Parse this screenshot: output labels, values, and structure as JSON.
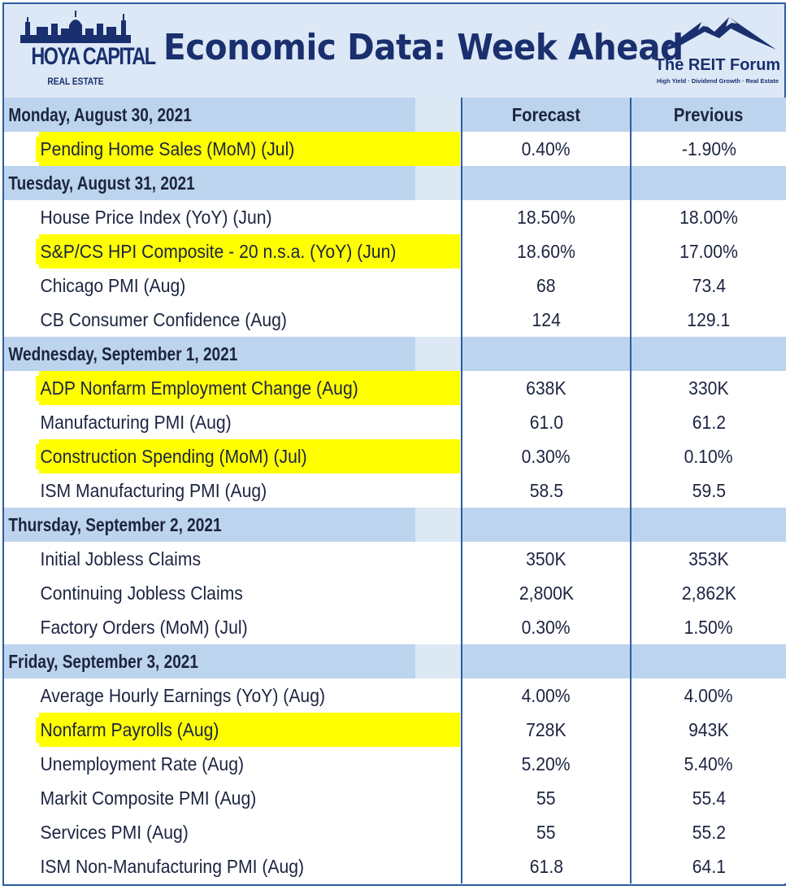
{
  "header": {
    "title": "Economic Data: Week Ahead",
    "left_logo": {
      "name": "HOYA CAPITAL",
      "sub": "REAL ESTATE"
    },
    "right_logo": {
      "name": "The REIT Forum",
      "tagline": "High Yield · Dividend Growth · Real Estate"
    }
  },
  "columns": {
    "forecast": "Forecast",
    "previous": "Previous"
  },
  "colors": {
    "navy": "#1a2f6e",
    "highlight": "#ffff00",
    "day_row": "#bdd4ee",
    "frame": "#2f5da0"
  },
  "days": [
    {
      "label": "Monday, August 30, 2021",
      "items": [
        {
          "name": "Pending Home Sales (MoM) (Jul)",
          "forecast": "0.40%",
          "previous": "-1.90%",
          "highlight": true
        }
      ]
    },
    {
      "label": "Tuesday, August 31, 2021",
      "items": [
        {
          "name": "House Price Index (YoY) (Jun)",
          "forecast": "18.50%",
          "previous": "18.00%",
          "highlight": false
        },
        {
          "name": "S&P/CS HPI Composite - 20 n.s.a. (YoY) (Jun)",
          "forecast": "18.60%",
          "previous": "17.00%",
          "highlight": true
        },
        {
          "name": "Chicago PMI (Aug)",
          "forecast": "68",
          "previous": "73.4",
          "highlight": false
        },
        {
          "name": "CB Consumer Confidence (Aug)",
          "forecast": "124",
          "previous": "129.1",
          "highlight": false
        }
      ]
    },
    {
      "label": "Wednesday, September 1, 2021",
      "items": [
        {
          "name": "ADP Nonfarm Employment Change (Aug)",
          "forecast": "638K",
          "previous": "330K",
          "highlight": true
        },
        {
          "name": "Manufacturing PMI (Aug)",
          "forecast": "61.0",
          "previous": "61.2",
          "highlight": false
        },
        {
          "name": "Construction Spending (MoM) (Jul)",
          "forecast": "0.30%",
          "previous": "0.10%",
          "highlight": true
        },
        {
          "name": "ISM Manufacturing PMI (Aug)",
          "forecast": "58.5",
          "previous": "59.5",
          "highlight": false
        }
      ]
    },
    {
      "label": "Thursday, September 2, 2021",
      "items": [
        {
          "name": "Initial Jobless Claims",
          "forecast": "350K",
          "previous": "353K",
          "highlight": false
        },
        {
          "name": "Continuing Jobless Claims",
          "forecast": "2,800K",
          "previous": "2,862K",
          "highlight": false
        },
        {
          "name": "Factory Orders (MoM) (Jul)",
          "forecast": "0.30%",
          "previous": "1.50%",
          "highlight": false
        }
      ]
    },
    {
      "label": "Friday, September 3, 2021",
      "items": [
        {
          "name": "Average Hourly Earnings (YoY) (Aug)",
          "forecast": "4.00%",
          "previous": "4.00%",
          "highlight": false
        },
        {
          "name": "Nonfarm Payrolls (Aug)",
          "forecast": "728K",
          "previous": "943K",
          "highlight": true
        },
        {
          "name": "Unemployment Rate (Aug)",
          "forecast": "5.20%",
          "previous": "5.40%",
          "highlight": false
        },
        {
          "name": "Markit Composite PMI (Aug)",
          "forecast": "55",
          "previous": "55.4",
          "highlight": false
        },
        {
          "name": "Services PMI (Aug)",
          "forecast": "55",
          "previous": "55.2",
          "highlight": false
        },
        {
          "name": "ISM Non-Manufacturing PMI (Aug)",
          "forecast": "61.8",
          "previous": "64.1",
          "highlight": false
        }
      ]
    }
  ]
}
